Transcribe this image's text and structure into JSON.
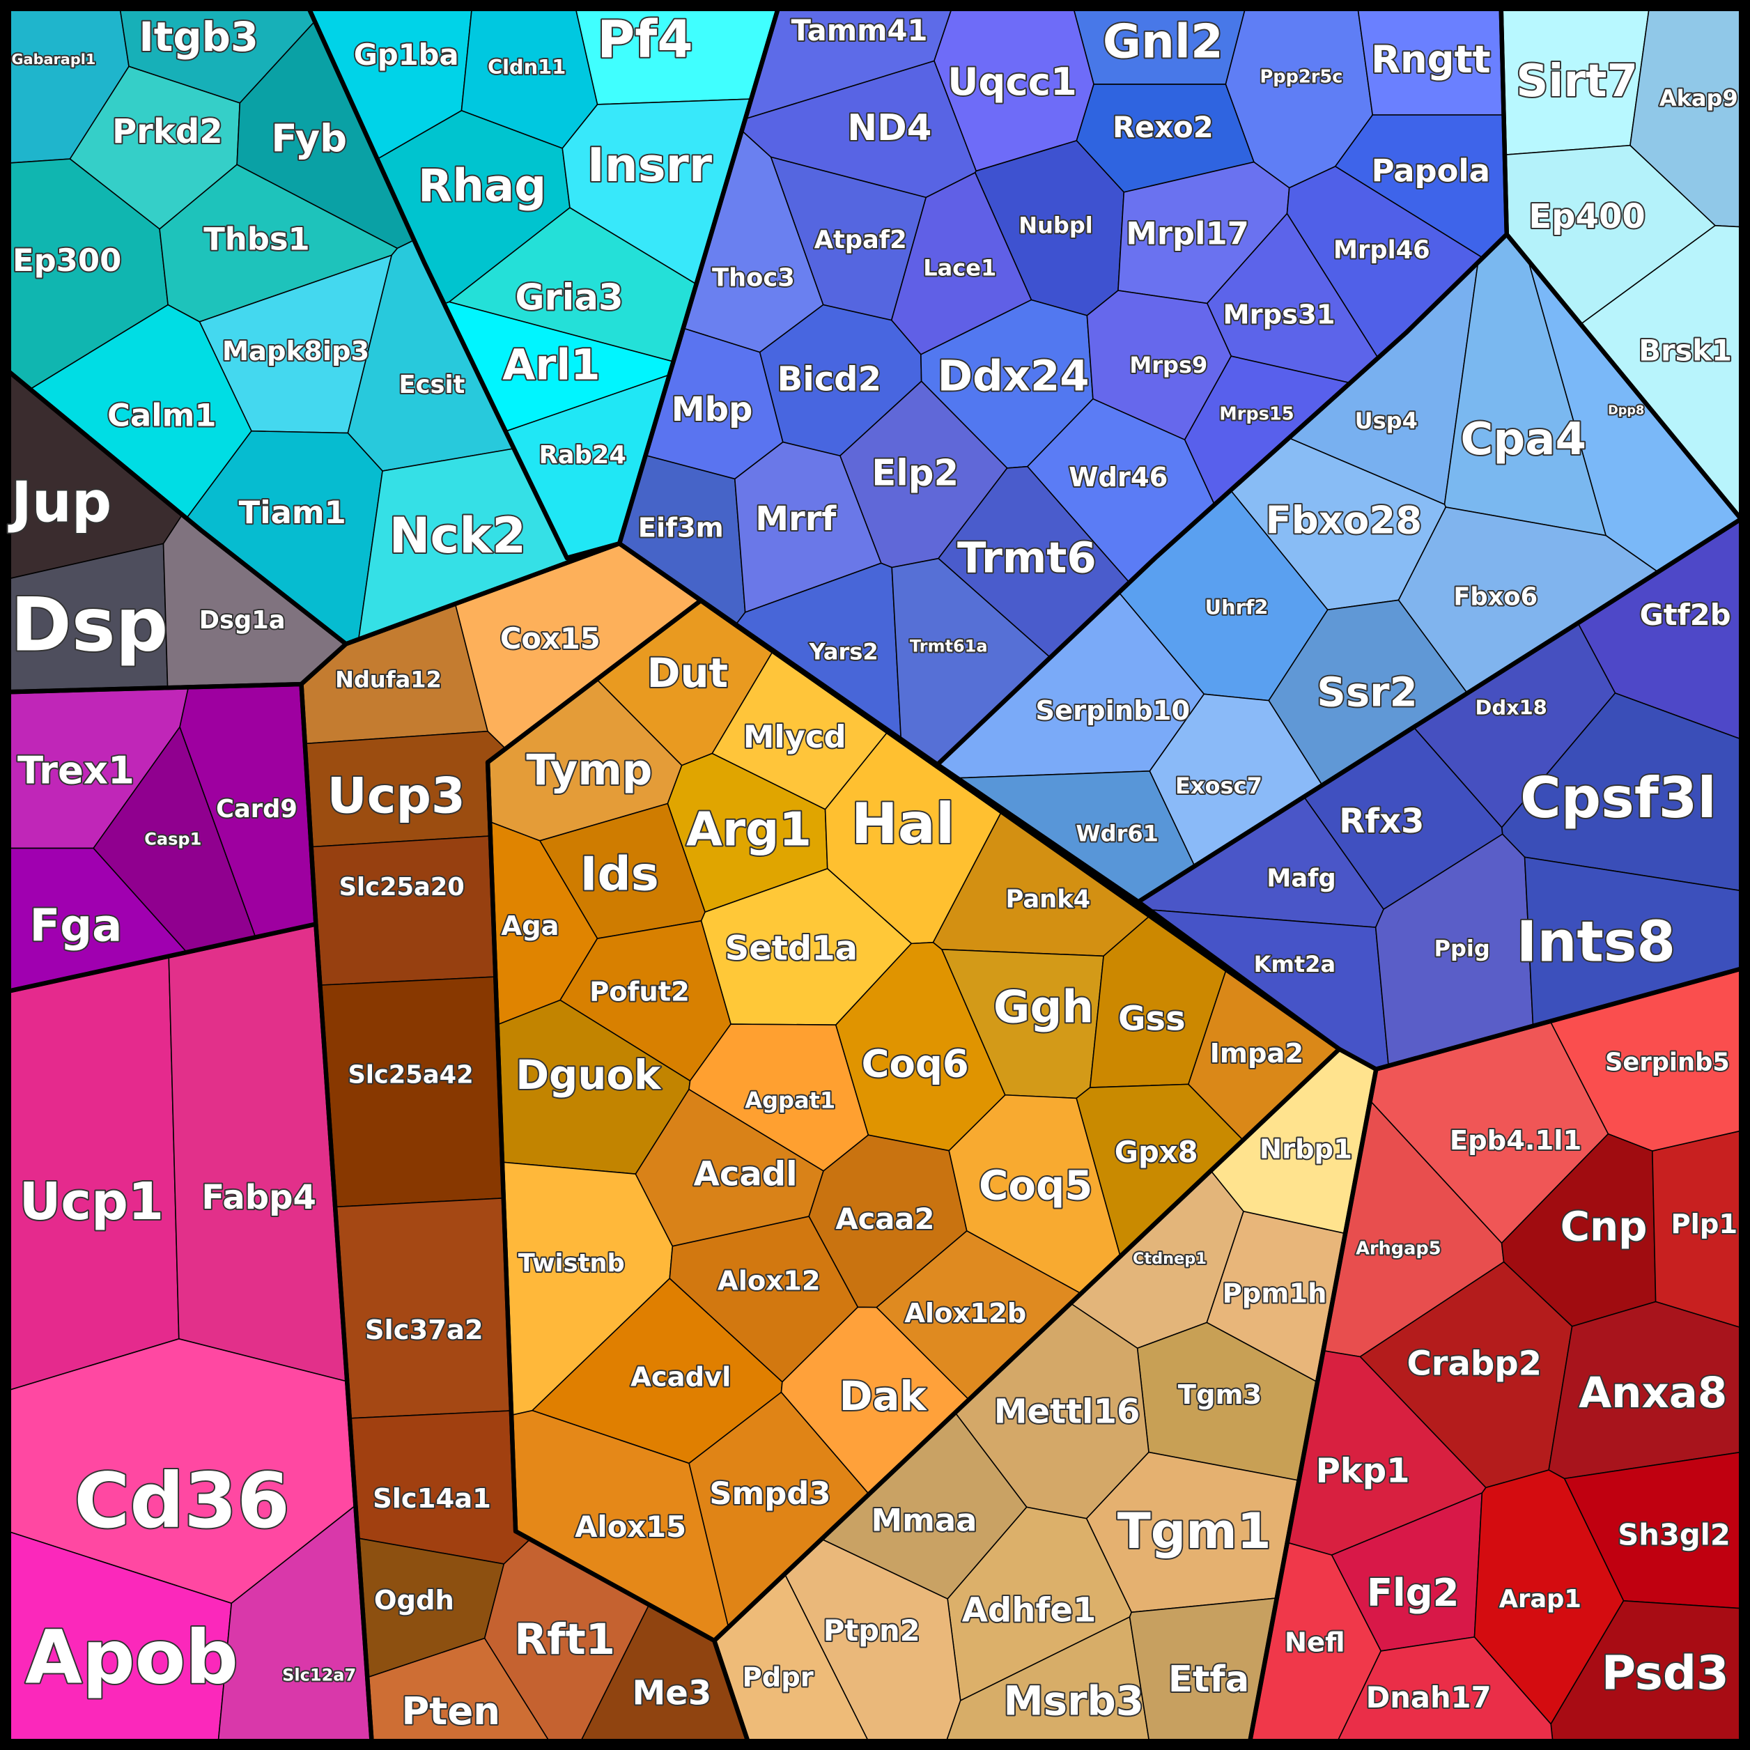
{
  "groups": [
    {
      "nodes": [
        {
          "label": "Gabarapl1",
          "color": "#1fb5cc"
        },
        {
          "label": "Itgb3",
          "color": "#17b0b8"
        },
        {
          "label": "Prkd2",
          "color": "#35cfc8"
        },
        {
          "label": "Fyb",
          "color": "#0aa1a5"
        },
        {
          "label": "Ep300",
          "color": "#10b6b0"
        },
        {
          "label": "Thbs1",
          "color": "#1ec3bb"
        },
        {
          "label": "Mapk8ip3",
          "color": "#44d8ef"
        },
        {
          "label": "Ecsit",
          "color": "#28c9dc"
        },
        {
          "label": "Calm1",
          "color": "#00dde4"
        },
        {
          "label": "Tiam1",
          "color": "#06bcd0"
        },
        {
          "label": "Nck2",
          "color": "#35e0e6"
        }
      ]
    },
    {
      "nodes": [
        {
          "label": "Gp1ba",
          "color": "#00d3e8"
        },
        {
          "label": "Cldn11",
          "color": "#00c8e0"
        },
        {
          "label": "Pf4",
          "color": "#40ffff"
        },
        {
          "label": "Rhag",
          "color": "#00c4cf"
        },
        {
          "label": "Insrr",
          "color": "#38e8fa"
        },
        {
          "label": "Gria3",
          "color": "#24e0d8"
        },
        {
          "label": "Arl1",
          "color": "#00f5ff"
        },
        {
          "label": "Rab24",
          "color": "#20e7f5"
        }
      ]
    },
    {
      "nodes": [
        {
          "label": "Jup",
          "color": "#3a2c2e"
        },
        {
          "label": "Dsp",
          "color": "#4e4e5d"
        },
        {
          "label": "Dsg1a",
          "color": "#80737f"
        }
      ]
    },
    {
      "nodes": [
        {
          "label": "Trex1",
          "color": "#c026b8"
        },
        {
          "label": "Casp1",
          "color": "#90008f"
        },
        {
          "label": "Card9",
          "color": "#9e00a0"
        },
        {
          "label": "Fga",
          "color": "#a000b0"
        }
      ]
    },
    {
      "nodes": [
        {
          "label": "Ucp1",
          "color": "#e52a8d"
        },
        {
          "label": "Fabp4",
          "color": "#e2308a"
        },
        {
          "label": "Cd36",
          "color": "#ff48a2"
        },
        {
          "label": "Apob",
          "color": "#fb28bb"
        },
        {
          "label": "Slc12a7",
          "color": "#d938aa"
        }
      ]
    },
    {
      "nodes": [
        {
          "label": "Ndufa12",
          "color": "#c47c30"
        },
        {
          "label": "Cox15",
          "color": "#fdb05a"
        },
        {
          "label": "Ucp3",
          "color": "#9c4d10"
        },
        {
          "label": "Slc25a20",
          "color": "#974010"
        },
        {
          "label": "Slc25a42",
          "color": "#883800"
        },
        {
          "label": "Slc37a2",
          "color": "#a54814"
        },
        {
          "label": "Slc14a1",
          "color": "#a14010"
        },
        {
          "label": "Ogdh",
          "color": "#8d5010"
        },
        {
          "label": "Rft1",
          "color": "#c56230"
        },
        {
          "label": "Pten",
          "color": "#ce6e34"
        },
        {
          "label": "Me3",
          "color": "#904410"
        }
      ]
    },
    {
      "nodes": [
        {
          "label": "Dut",
          "color": "#e99a20"
        },
        {
          "label": "Tymp",
          "color": "#e49c38"
        },
        {
          "label": "Mlycd",
          "color": "#ffc53a"
        },
        {
          "label": "Arg1",
          "color": "#e0a500"
        },
        {
          "label": "Hal",
          "color": "#ffc030"
        },
        {
          "label": "Ids",
          "color": "#cf7c00"
        },
        {
          "label": "Aga",
          "color": "#e08400"
        },
        {
          "label": "Setd1a",
          "color": "#ffc838"
        },
        {
          "label": "Pofut2",
          "color": "#d88000"
        },
        {
          "label": "Dguok",
          "color": "#c28400"
        },
        {
          "label": "Agpat1",
          "color": "#ffa030"
        },
        {
          "label": "Coq6",
          "color": "#e09400"
        },
        {
          "label": "Pank4",
          "color": "#d39012"
        },
        {
          "label": "Ggh",
          "color": "#d39a18"
        },
        {
          "label": "Gss",
          "color": "#cc8800"
        },
        {
          "label": "Impa2",
          "color": "#da8818"
        },
        {
          "label": "Twistnb",
          "color": "#ffb83a"
        },
        {
          "label": "Acadl",
          "color": "#d98218"
        },
        {
          "label": "Acaa2",
          "color": "#c97310"
        },
        {
          "label": "Coq5",
          "color": "#f8aa30"
        },
        {
          "label": "Gpx8",
          "color": "#c98a00"
        },
        {
          "label": "Alox12",
          "color": "#d27810"
        },
        {
          "label": "Alox12b",
          "color": "#df8a20"
        },
        {
          "label": "Acadvl",
          "color": "#e07f00"
        },
        {
          "label": "Dak",
          "color": "#ffa13a"
        },
        {
          "label": "Alox15",
          "color": "#e58818"
        },
        {
          "label": "Smpd3",
          "color": "#e08416"
        }
      ]
    },
    {
      "nodes": [
        {
          "label": "Nrbp1",
          "color": "#ffe38e"
        },
        {
          "label": "Ctdnep1",
          "color": "#e3b57a"
        },
        {
          "label": "Ppm1h",
          "color": "#e8b67a"
        },
        {
          "label": "Tgm3",
          "color": "#c8a055"
        },
        {
          "label": "Mettl16",
          "color": "#d4a868"
        },
        {
          "label": "Tgm1",
          "color": "#e5b170"
        },
        {
          "label": "Mmaa",
          "color": "#c9a264"
        },
        {
          "label": "Adhfe1",
          "color": "#dcb06a"
        },
        {
          "label": "Ptpn2",
          "color": "#eab87a"
        },
        {
          "label": "Pdpr",
          "color": "#eebb78"
        },
        {
          "label": "Msrb3",
          "color": "#d7ad68"
        },
        {
          "label": "Etfa",
          "color": "#c7a060"
        }
      ]
    },
    {
      "nodes": [
        {
          "label": "Tamm41",
          "color": "#5d6be8"
        },
        {
          "label": "Gnl2",
          "color": "#4878e8"
        },
        {
          "label": "Ppp2r5c",
          "color": "#5f7ef5"
        },
        {
          "label": "Rngtt",
          "color": "#6a80ff"
        },
        {
          "label": "Uqcc1",
          "color": "#6e6cf8"
        },
        {
          "label": "ND4",
          "color": "#5864e4"
        },
        {
          "label": "Rexo2",
          "color": "#2f64e0"
        },
        {
          "label": "Papola",
          "color": "#3e64ea"
        },
        {
          "label": "Atpaf2",
          "color": "#5566e0"
        },
        {
          "label": "Nubpl",
          "color": "#3e52d0"
        },
        {
          "label": "Mrpl17",
          "color": "#6a72f0"
        },
        {
          "label": "Mrpl46",
          "color": "#5060e8"
        },
        {
          "label": "Lace1",
          "color": "#6060e6"
        },
        {
          "label": "Thoc3",
          "color": "#6a80f0"
        },
        {
          "label": "Mrps31",
          "color": "#5c64ea"
        },
        {
          "label": "Mbp",
          "color": "#5a74f0"
        },
        {
          "label": "Bicd2",
          "color": "#4866e0"
        },
        {
          "label": "Ddx24",
          "color": "#5278f0"
        },
        {
          "label": "Mrps9",
          "color": "#6668ec"
        },
        {
          "label": "Mrps15",
          "color": "#5860ec"
        },
        {
          "label": "Elp2",
          "color": "#6068d8"
        },
        {
          "label": "Wdr46",
          "color": "#5b7cf5"
        },
        {
          "label": "Eif3m",
          "color": "#4664c8"
        },
        {
          "label": "Mrrf",
          "color": "#6a78e8"
        },
        {
          "label": "Trmt6",
          "color": "#4a5ccc"
        },
        {
          "label": "Yars2",
          "color": "#4866d8"
        },
        {
          "label": "Trmt61a",
          "color": "#5670d6"
        }
      ]
    },
    {
      "nodes": [
        {
          "label": "Usp4",
          "color": "#78b0f0"
        },
        {
          "label": "Cpa4",
          "color": "#7ab8f0"
        },
        {
          "label": "Dpp8",
          "color": "#7ab8f8"
        },
        {
          "label": "Fbxo28",
          "color": "#88bcf5"
        },
        {
          "label": "Uhrf2",
          "color": "#5aa0f0"
        },
        {
          "label": "Fbxo6",
          "color": "#80b4ee"
        },
        {
          "label": "Ssr2",
          "color": "#6098d6"
        },
        {
          "label": "Serpinb10",
          "color": "#7aaaf8"
        },
        {
          "label": "Exosc7",
          "color": "#8abaf8"
        },
        {
          "label": "Wdr61",
          "color": "#5896d8"
        }
      ]
    },
    {
      "nodes": [
        {
          "label": "Gtf2b",
          "color": "#4e48c8"
        },
        {
          "label": "Ddx18",
          "color": "#4650c0"
        },
        {
          "label": "Cpsf3l",
          "color": "#3a4eb8"
        },
        {
          "label": "Rfx3",
          "color": "#4050c0"
        },
        {
          "label": "Mafg",
          "color": "#4a56c8"
        },
        {
          "label": "Kmt2a",
          "color": "#4654c8"
        },
        {
          "label": "Ppig",
          "color": "#5a5ec8"
        },
        {
          "label": "Ints8",
          "color": "#3c50bc"
        }
      ]
    },
    {
      "nodes": [
        {
          "label": "Sirt7",
          "color": "#b8f8ff"
        },
        {
          "label": "Akap9",
          "color": "#90c8e8"
        },
        {
          "label": "Ep400",
          "color": "#b4f2fa"
        },
        {
          "label": "Brsk1",
          "color": "#b8f4fc"
        }
      ]
    },
    {
      "nodes": [
        {
          "label": "Serpinb5",
          "color": "#fa4e4e"
        },
        {
          "label": "Epb4.1l1",
          "color": "#f05656"
        },
        {
          "label": "Arhgap5",
          "color": "#e84e4e"
        },
        {
          "label": "Cnp",
          "color": "#a00c10"
        },
        {
          "label": "Plp1",
          "color": "#c82020"
        },
        {
          "label": "Crabp2",
          "color": "#b41c1c"
        },
        {
          "label": "Anxa8",
          "color": "#a8141c"
        },
        {
          "label": "Pkp1",
          "color": "#d82040"
        },
        {
          "label": "Sh3gl2",
          "color": "#c00010"
        },
        {
          "label": "Flg2",
          "color": "#d81848"
        },
        {
          "label": "Arap1",
          "color": "#d40c10"
        },
        {
          "label": "Nefl",
          "color": "#f0384a"
        },
        {
          "label": "Psd3",
          "color": "#a80c14"
        },
        {
          "label": "Dnah17",
          "color": "#ea2e48"
        }
      ]
    }
  ]
}
